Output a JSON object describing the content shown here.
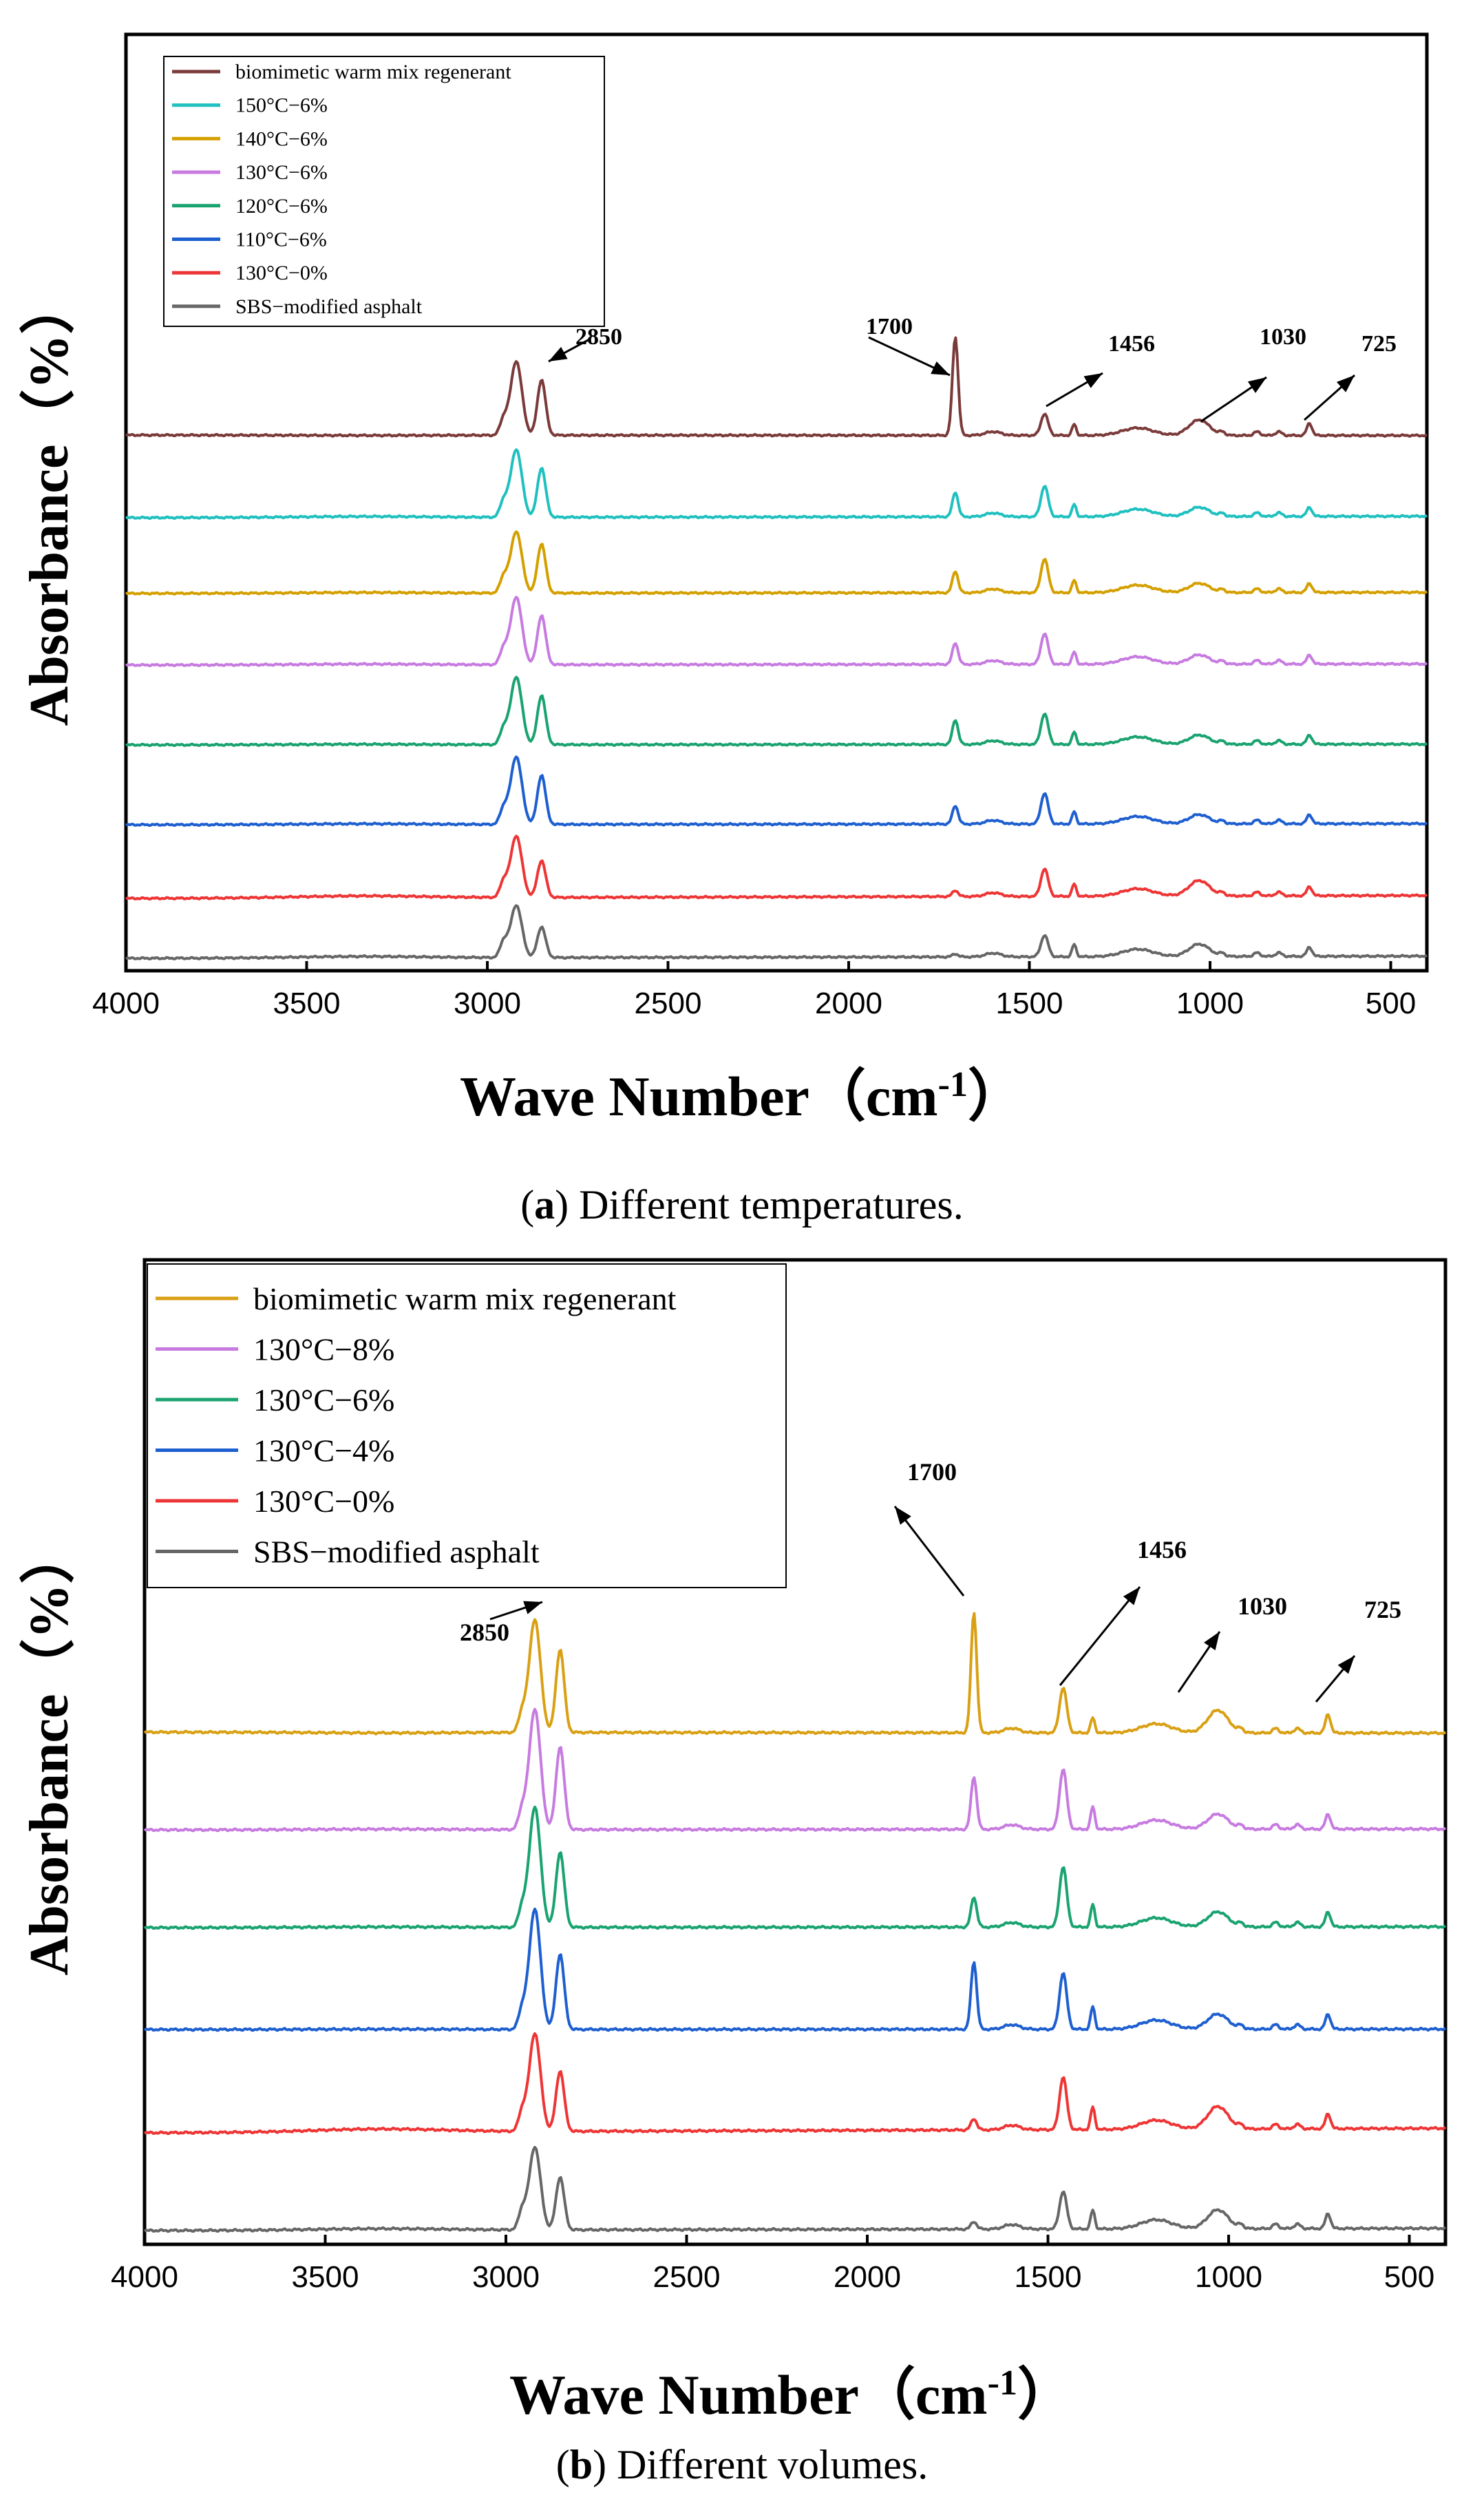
{
  "chart_data": [
    {
      "type": "line",
      "panel": "a",
      "caption_letter": "a",
      "caption_text": ") Different temperatures.",
      "caption_open": "(",
      "xlabel": "Wave Number（cm",
      "xlabel_sup": "-1",
      "xlabel_close": "）",
      "ylabel": "Absorbance（%）",
      "xlim": [
        4000,
        400
      ],
      "x_reversed": true,
      "xticks": [
        4000,
        3500,
        3000,
        2500,
        2000,
        1500,
        1000,
        500
      ],
      "xtick_labels": [
        "4000",
        "3500",
        "3000",
        "2500",
        "2000",
        "1500",
        "1000",
        "500"
      ],
      "yticks_shown": false,
      "legend_position": "top-left",
      "series": [
        {
          "name": "biomimetic warm mix regenerant",
          "color": "#7b3a3a",
          "offset": 8,
          "p2920": 1.2,
          "p2850": 0.9,
          "p1700": 1.6,
          "p1456": 0.35,
          "p1375": 0.18,
          "p1030": 0.25,
          "p725": 0.2,
          "tilt": -0.05
        },
        {
          "name": "150°C−6%",
          "color": "#20c0c0",
          "offset": 7,
          "p2920": 1.1,
          "p2850": 0.8,
          "p1700": 0.4,
          "p1456": 0.5,
          "p1375": 0.2,
          "p1030": 0.15,
          "p725": 0.15,
          "tilt": 0.2
        },
        {
          "name": "140°C−6%",
          "color": "#d4a000",
          "offset": 6,
          "p2920": 1.0,
          "p2850": 0.8,
          "p1700": 0.35,
          "p1456": 0.55,
          "p1375": 0.2,
          "p1030": 0.15,
          "p725": 0.15,
          "tilt": 0.15
        },
        {
          "name": "130°C−6%",
          "color": "#c77be0",
          "offset": 5,
          "p2920": 1.1,
          "p2850": 0.8,
          "p1700": 0.35,
          "p1456": 0.5,
          "p1375": 0.2,
          "p1030": 0.15,
          "p725": 0.15,
          "tilt": 0.15
        },
        {
          "name": "120°C−6%",
          "color": "#1aa370",
          "offset": 4,
          "p2920": 1.1,
          "p2850": 0.8,
          "p1700": 0.4,
          "p1456": 0.5,
          "p1375": 0.2,
          "p1030": 0.15,
          "p725": 0.15,
          "tilt": 0.1
        },
        {
          "name": "110°C−6%",
          "color": "#1e5fd0",
          "offset": 3,
          "p2920": 1.1,
          "p2850": 0.8,
          "p1700": 0.3,
          "p1456": 0.5,
          "p1375": 0.2,
          "p1030": 0.15,
          "p725": 0.15,
          "tilt": 0.15
        },
        {
          "name": "130°C−0%",
          "color": "#ee3535",
          "offset": 2,
          "p2920": 1.0,
          "p2850": 0.6,
          "p1700": 0.1,
          "p1456": 0.45,
          "p1375": 0.2,
          "p1030": 0.25,
          "p725": 0.15,
          "tilt": 0.4
        },
        {
          "name": "SBS−modified asphalt",
          "color": "#666666",
          "offset": 1,
          "p2920": 0.85,
          "p2850": 0.5,
          "p1700": 0.05,
          "p1456": 0.35,
          "p1375": 0.2,
          "p1030": 0.2,
          "p725": 0.15,
          "tilt": 0.3
        }
      ],
      "annotations": [
        {
          "text": "2850",
          "x": 2850
        },
        {
          "text": "1700",
          "x": 1700
        },
        {
          "text": "1456",
          "x": 1456
        },
        {
          "text": "1030",
          "x": 1030
        },
        {
          "text": "725",
          "x": 725
        }
      ]
    },
    {
      "type": "line",
      "panel": "b",
      "caption_letter": "b",
      "caption_text": ") Different volumes.",
      "caption_open": "(",
      "xlabel": "Wave Number（cm",
      "xlabel_sup": "-1",
      "xlabel_close": "）",
      "ylabel": "Absorbance（%）",
      "xlim": [
        4000,
        400
      ],
      "x_reversed": true,
      "xticks": [
        4000,
        3500,
        3000,
        2500,
        2000,
        1500,
        1000,
        500
      ],
      "xtick_labels": [
        "4000",
        "3500",
        "3000",
        "2500",
        "2000",
        "1500",
        "1000",
        "500"
      ],
      "yticks_shown": false,
      "legend_position": "top-left",
      "series": [
        {
          "name": "biomimetic warm mix regenerant",
          "color": "#d9a014",
          "offset": 6,
          "p2920": 1.5,
          "p2850": 1.1,
          "p1700": 1.6,
          "p1456": 0.6,
          "p1375": 0.2,
          "p1030": 0.3,
          "p725": 0.25,
          "tilt": -0.1
        },
        {
          "name": "130°C−8%",
          "color": "#c77be0",
          "offset": 5,
          "p2920": 1.6,
          "p2850": 1.1,
          "p1700": 0.7,
          "p1456": 0.8,
          "p1375": 0.3,
          "p1030": 0.2,
          "p725": 0.2,
          "tilt": 0.1
        },
        {
          "name": "130°C−6%",
          "color": "#1aa370",
          "offset": 4,
          "p2920": 1.6,
          "p2850": 1.0,
          "p1700": 0.4,
          "p1456": 0.8,
          "p1375": 0.3,
          "p1030": 0.2,
          "p725": 0.2,
          "tilt": 0.1
        },
        {
          "name": "130°C−4%",
          "color": "#1e5fd0",
          "offset": 3,
          "p2920": 1.6,
          "p2850": 1.0,
          "p1700": 0.9,
          "p1456": 0.75,
          "p1375": 0.3,
          "p1030": 0.2,
          "p725": 0.2,
          "tilt": 0.05
        },
        {
          "name": "130°C−0%",
          "color": "#ee3535",
          "offset": 2,
          "p2920": 1.3,
          "p2850": 0.8,
          "p1700": 0.15,
          "p1456": 0.7,
          "p1375": 0.3,
          "p1030": 0.3,
          "p725": 0.2,
          "tilt": 0.5
        },
        {
          "name": "SBS−modified asphalt",
          "color": "#666666",
          "offset": 1,
          "p2920": 1.1,
          "p2850": 0.7,
          "p1700": 0.1,
          "p1456": 0.5,
          "p1375": 0.25,
          "p1030": 0.25,
          "p725": 0.2,
          "tilt": 0.25
        }
      ],
      "annotations": [
        {
          "text": "2850",
          "x": 2850
        },
        {
          "text": "1700",
          "x": 1700
        },
        {
          "text": "1456",
          "x": 1456
        },
        {
          "text": "1030",
          "x": 1030
        },
        {
          "text": "725",
          "x": 725
        }
      ]
    }
  ]
}
